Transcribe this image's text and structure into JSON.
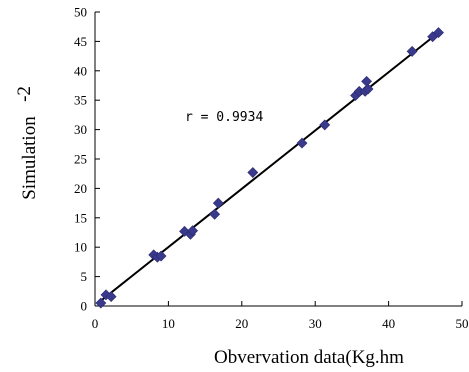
{
  "chart_data": {
    "type": "scatter",
    "xlabel": "Obvervation data(Kg.hm",
    "ylabel": "Simulation",
    "ylabel_fragment": "-2",
    "xlim": [
      0,
      50
    ],
    "ylim": [
      0,
      50
    ],
    "x_ticks": [
      0,
      10,
      20,
      30,
      40,
      50
    ],
    "y_ticks": [
      0,
      5,
      10,
      15,
      20,
      25,
      30,
      35,
      40,
      45,
      50
    ],
    "annotation": "r = 0.9934",
    "grid": false,
    "marker": "diamond",
    "marker_color": "#3a3a8c",
    "series": [
      {
        "points": [
          [
            0.8,
            0.5
          ],
          [
            1.5,
            1.9
          ],
          [
            2.2,
            1.6
          ],
          [
            8.0,
            8.7
          ],
          [
            8.5,
            8.3
          ],
          [
            9.0,
            8.5
          ],
          [
            12.2,
            12.7
          ],
          [
            13.0,
            12.2
          ],
          [
            13.3,
            12.8
          ],
          [
            16.3,
            15.6
          ],
          [
            16.8,
            17.5
          ],
          [
            21.5,
            22.7
          ],
          [
            28.2,
            27.7
          ],
          [
            31.3,
            30.8
          ],
          [
            35.5,
            35.8
          ],
          [
            36.0,
            36.5
          ],
          [
            36.8,
            36.5
          ],
          [
            37.0,
            38.2
          ],
          [
            37.2,
            36.9
          ],
          [
            43.2,
            43.3
          ],
          [
            46.0,
            45.8
          ],
          [
            46.8,
            46.5
          ]
        ]
      }
    ],
    "fit_line": {
      "x": [
        0.5,
        47.0
      ],
      "y": [
        0.6,
        46.7
      ],
      "color": "#000000"
    }
  }
}
